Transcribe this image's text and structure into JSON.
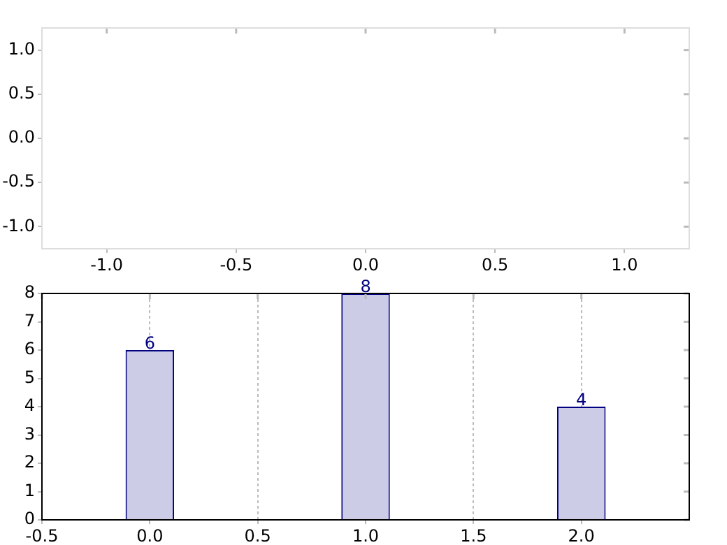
{
  "chart_data": [
    {
      "type": "line",
      "xlim": [
        -1.25,
        1.25
      ],
      "ylim": [
        -1.25,
        1.25
      ],
      "xticks": [
        {
          "value": -1,
          "label": "-1.0"
        },
        {
          "value": -0.5,
          "label": "-0.5"
        },
        {
          "value": 0,
          "label": "0.0"
        },
        {
          "value": 0.5,
          "label": "0.5"
        },
        {
          "value": 1,
          "label": "1.0"
        }
      ],
      "yticks": [
        {
          "value": -1,
          "label": "-1.0"
        },
        {
          "value": -0.5,
          "label": "-0.5"
        },
        {
          "value": 0,
          "label": "0.0"
        },
        {
          "value": 0.5,
          "label": "0.5"
        },
        {
          "value": 1,
          "label": "1.0"
        }
      ],
      "tick_labels": true
    },
    {
      "type": "bar",
      "x": [
        0,
        1,
        2
      ],
      "series": [
        {
          "color": "#cccce6",
          "values": [
            6,
            8,
            4
          ]
        }
      ],
      "xlim": [
        -0.5,
        2.5
      ],
      "ylim": [
        0,
        8
      ],
      "xticks": [
        {
          "value": -0.5,
          "label": "-0.5"
        },
        {
          "value": 0,
          "label": "0.0"
        },
        {
          "value": 0.5,
          "label": "0.5"
        },
        {
          "value": 1,
          "label": "1.0"
        },
        {
          "value": 1.5,
          "label": "1.5"
        },
        {
          "value": 2,
          "label": "2.0"
        }
      ],
      "yticks": [
        0,
        1,
        2,
        3,
        4,
        5,
        6,
        7,
        8
      ],
      "grid": "x",
      "data_labels": true
    }
  ]
}
